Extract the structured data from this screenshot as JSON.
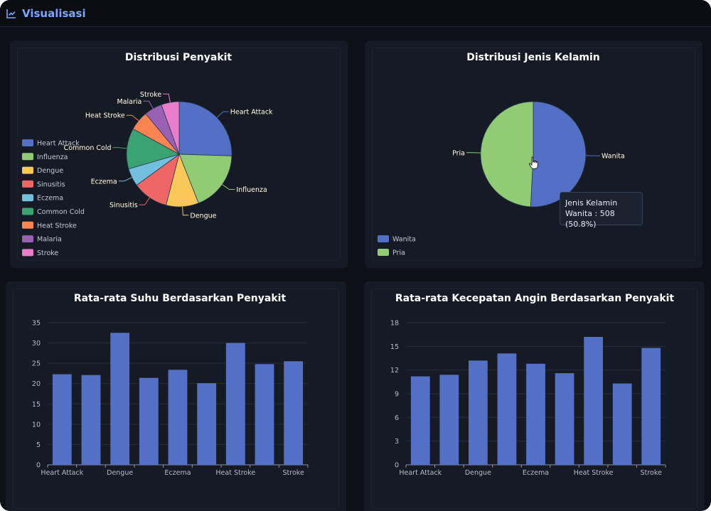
{
  "header": {
    "title": "Visualisasi",
    "icon": "line-chart-icon",
    "accent": "#7da4ff"
  },
  "colors": {
    "palette": [
      "#5470c6",
      "#91cc75",
      "#fac858",
      "#ee6666",
      "#73c0de",
      "#3ba272",
      "#fc8452",
      "#9a60b4",
      "#ea7ccc"
    ],
    "bar": "#5470c6"
  },
  "tooltip": {
    "title": "Jenis Kelamin",
    "text": "Wanita : 508 (50.8%)"
  },
  "chart_data": [
    {
      "type": "pie",
      "title": "Distribusi Penyakit",
      "categories": [
        "Heart Attack",
        "Influenza",
        "Dengue",
        "Sinusitis",
        "Eczema",
        "Common Cold",
        "Heat Stroke",
        "Malaria",
        "Stroke"
      ],
      "values": [
        25.5,
        18.5,
        10.0,
        11.0,
        5.5,
        12.5,
        6.0,
        5.5,
        5.5
      ],
      "legend": "left",
      "grid": false
    },
    {
      "type": "pie",
      "title": "Distribusi Jenis Kelamin",
      "categories": [
        "Wanita",
        "Pria"
      ],
      "values": [
        508,
        492
      ],
      "legend": "bottom-left",
      "grid": false
    },
    {
      "type": "bar",
      "title": "Rata-rata Suhu Berdasarkan Penyakit",
      "categories": [
        "Heart Attack",
        "Influenza",
        "Dengue",
        "Sinusitis",
        "Eczema",
        "Common Cold",
        "Heat Stroke",
        "Malaria",
        "Stroke"
      ],
      "tick_labels": [
        "Heart Attack",
        "Dengue",
        "Eczema",
        "Heat Stroke",
        "Stroke"
      ],
      "values": [
        22.3,
        22.1,
        32.5,
        21.4,
        23.4,
        20.1,
        30.0,
        24.8,
        25.5
      ],
      "yticks": [
        0,
        5,
        10,
        15,
        20,
        25,
        30,
        35
      ],
      "ylim": [
        0,
        35
      ],
      "grid": true
    },
    {
      "type": "bar",
      "title": "Rata-rata Kecepatan Angin Berdasarkan Penyakit",
      "categories": [
        "Heart Attack",
        "Influenza",
        "Dengue",
        "Sinusitis",
        "Eczema",
        "Common Cold",
        "Heat Stroke",
        "Malaria",
        "Stroke"
      ],
      "tick_labels": [
        "Heart Attack",
        "Dengue",
        "Eczema",
        "Heat Stroke",
        "Stroke"
      ],
      "values": [
        11.2,
        11.4,
        13.2,
        14.1,
        12.8,
        11.6,
        16.2,
        10.3,
        14.8
      ],
      "yticks": [
        0,
        3,
        6,
        9,
        12,
        15,
        18
      ],
      "ylim": [
        0,
        18
      ],
      "grid": true
    }
  ]
}
